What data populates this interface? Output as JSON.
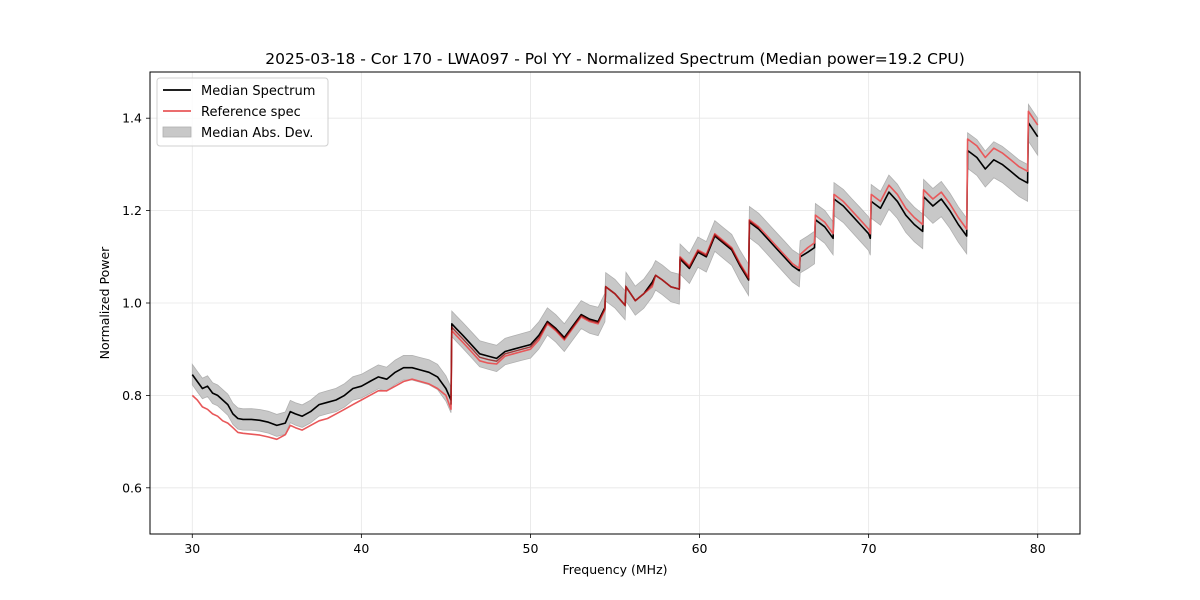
{
  "chart_data": {
    "type": "line",
    "title": "2025-03-18 - Cor 170 - LWA097 - Pol YY - Normalized Spectrum (Median power=19.2 CPU)",
    "xlabel": "Frequency (MHz)",
    "ylabel": "Normalized Power",
    "xlim": [
      27.5,
      82.5
    ],
    "ylim": [
      0.5,
      1.5
    ],
    "xticks": [
      30,
      40,
      50,
      60,
      70,
      80
    ],
    "xtick_labels": [
      "30",
      "40",
      "50",
      "60",
      "70",
      "80"
    ],
    "yticks": [
      0.6,
      0.8,
      1.0,
      1.2,
      1.4
    ],
    "ytick_labels": [
      "0.6",
      "0.8",
      "1.0",
      "1.2",
      "1.4"
    ],
    "grid": true,
    "legend": {
      "position": "top-left",
      "entries": [
        {
          "label": "Median Spectrum",
          "kind": "line",
          "color": "#000000"
        },
        {
          "label": "Reference spec",
          "kind": "line",
          "color": "#e8585a"
        },
        {
          "label": "Median Abs. Dev.",
          "kind": "band",
          "color": "#bdbdbd"
        }
      ]
    },
    "series": [
      {
        "name": "Median Spectrum",
        "color": "#000000",
        "x": [
          30.0,
          30.3,
          30.6,
          30.9,
          31.2,
          31.5,
          31.8,
          32.1,
          32.4,
          32.7,
          33.0,
          33.5,
          34.0,
          34.5,
          35.0,
          35.5,
          35.8,
          36.1,
          36.5,
          37.0,
          37.5,
          38.0,
          38.5,
          39.0,
          39.5,
          40.0,
          40.5,
          41.0,
          41.5,
          42.0,
          42.5,
          43.0,
          43.5,
          44.0,
          44.5,
          45.0,
          45.3,
          45.35,
          45.6,
          46.0,
          46.5,
          47.0,
          47.5,
          48.0,
          48.5,
          49.0,
          49.5,
          50.0,
          50.5,
          51.0,
          51.5,
          52.0,
          52.5,
          53.0,
          53.5,
          54.0,
          54.4,
          54.45,
          55.0,
          55.6,
          55.65,
          56.2,
          56.7,
          57.2,
          57.4,
          57.8,
          58.3,
          58.8,
          58.85,
          59.4,
          59.9,
          60.4,
          60.9,
          61.4,
          61.9,
          62.4,
          62.9,
          62.95,
          63.5,
          64.0,
          64.5,
          65.0,
          65.5,
          65.9,
          65.95,
          66.4,
          66.8,
          66.85,
          67.4,
          67.9,
          67.95,
          68.5,
          69.0,
          69.5,
          70.0,
          70.1,
          70.15,
          70.7,
          71.2,
          71.7,
          72.2,
          72.7,
          73.2,
          73.25,
          73.8,
          74.3,
          74.8,
          75.3,
          75.8,
          75.85,
          76.4,
          76.9,
          77.4,
          77.9,
          78.4,
          78.9,
          79.4,
          79.45,
          80.0
        ],
        "values": [
          0.845,
          0.83,
          0.815,
          0.82,
          0.805,
          0.8,
          0.79,
          0.78,
          0.76,
          0.75,
          0.748,
          0.748,
          0.746,
          0.742,
          0.735,
          0.74,
          0.765,
          0.76,
          0.755,
          0.765,
          0.78,
          0.785,
          0.79,
          0.8,
          0.815,
          0.82,
          0.83,
          0.84,
          0.835,
          0.85,
          0.86,
          0.86,
          0.855,
          0.85,
          0.84,
          0.815,
          0.79,
          0.955,
          0.945,
          0.93,
          0.91,
          0.89,
          0.885,
          0.88,
          0.895,
          0.9,
          0.905,
          0.91,
          0.93,
          0.96,
          0.945,
          0.925,
          0.95,
          0.975,
          0.965,
          0.96,
          0.99,
          1.035,
          1.02,
          0.995,
          1.035,
          1.005,
          1.02,
          1.045,
          1.06,
          1.05,
          1.035,
          1.03,
          1.095,
          1.075,
          1.11,
          1.1,
          1.145,
          1.13,
          1.115,
          1.08,
          1.05,
          1.175,
          1.16,
          1.14,
          1.12,
          1.1,
          1.08,
          1.07,
          1.1,
          1.11,
          1.12,
          1.18,
          1.165,
          1.14,
          1.225,
          1.21,
          1.19,
          1.17,
          1.15,
          1.14,
          1.22,
          1.205,
          1.24,
          1.22,
          1.19,
          1.17,
          1.155,
          1.23,
          1.21,
          1.225,
          1.2,
          1.17,
          1.145,
          1.33,
          1.315,
          1.29,
          1.31,
          1.3,
          1.285,
          1.27,
          1.26,
          1.39,
          1.36
        ]
      },
      {
        "name": "Reference spec",
        "color": "#e8585a",
        "x": [
          30.0,
          30.3,
          30.6,
          30.9,
          31.2,
          31.5,
          31.8,
          32.1,
          32.4,
          32.7,
          33.0,
          33.5,
          34.0,
          34.5,
          35.0,
          35.5,
          35.8,
          36.1,
          36.5,
          37.0,
          37.5,
          38.0,
          38.5,
          39.0,
          39.5,
          40.0,
          40.5,
          41.0,
          41.5,
          42.0,
          42.5,
          43.0,
          43.5,
          44.0,
          44.5,
          45.0,
          45.3,
          45.35,
          45.6,
          46.0,
          46.5,
          47.0,
          47.5,
          48.0,
          48.5,
          49.0,
          49.5,
          50.0,
          50.5,
          51.0,
          51.5,
          52.0,
          52.5,
          53.0,
          53.5,
          54.0,
          54.4,
          54.45,
          55.0,
          55.6,
          55.65,
          56.2,
          56.7,
          57.2,
          57.4,
          57.8,
          58.3,
          58.8,
          58.85,
          59.4,
          59.9,
          60.4,
          60.9,
          61.4,
          61.9,
          62.4,
          62.9,
          62.95,
          63.5,
          64.0,
          64.5,
          65.0,
          65.5,
          65.9,
          65.95,
          66.4,
          66.8,
          66.85,
          67.4,
          67.9,
          67.95,
          68.5,
          69.0,
          69.5,
          70.0,
          70.1,
          70.15,
          70.7,
          71.2,
          71.7,
          72.2,
          72.7,
          73.2,
          73.25,
          73.8,
          74.3,
          74.8,
          75.3,
          75.8,
          75.85,
          76.4,
          76.9,
          77.4,
          77.9,
          78.4,
          78.9,
          79.4,
          79.45,
          80.0
        ],
        "values": [
          0.8,
          0.79,
          0.775,
          0.77,
          0.76,
          0.755,
          0.745,
          0.74,
          0.73,
          0.72,
          0.718,
          0.716,
          0.714,
          0.71,
          0.705,
          0.715,
          0.735,
          0.73,
          0.725,
          0.735,
          0.745,
          0.75,
          0.76,
          0.77,
          0.78,
          0.79,
          0.8,
          0.81,
          0.81,
          0.82,
          0.83,
          0.835,
          0.83,
          0.825,
          0.815,
          0.8,
          0.77,
          0.94,
          0.93,
          0.915,
          0.895,
          0.875,
          0.87,
          0.868,
          0.885,
          0.89,
          0.895,
          0.9,
          0.92,
          0.955,
          0.94,
          0.92,
          0.945,
          0.97,
          0.96,
          0.955,
          0.985,
          1.035,
          1.02,
          0.995,
          1.035,
          1.005,
          1.02,
          1.035,
          1.06,
          1.05,
          1.035,
          1.03,
          1.1,
          1.08,
          1.115,
          1.105,
          1.15,
          1.135,
          1.12,
          1.085,
          1.055,
          1.18,
          1.165,
          1.145,
          1.125,
          1.105,
          1.085,
          1.075,
          1.105,
          1.12,
          1.13,
          1.19,
          1.175,
          1.15,
          1.235,
          1.22,
          1.2,
          1.18,
          1.16,
          1.15,
          1.235,
          1.22,
          1.255,
          1.235,
          1.205,
          1.185,
          1.17,
          1.245,
          1.225,
          1.24,
          1.215,
          1.185,
          1.16,
          1.355,
          1.34,
          1.315,
          1.335,
          1.325,
          1.31,
          1.295,
          1.285,
          1.415,
          1.385
        ]
      }
    ],
    "band": {
      "name": "Median Abs. Dev.",
      "color": "#bdbdbd",
      "half_width_start": 0.022,
      "half_width_end": 0.04,
      "note": "shaded band around Median Spectrum"
    }
  }
}
